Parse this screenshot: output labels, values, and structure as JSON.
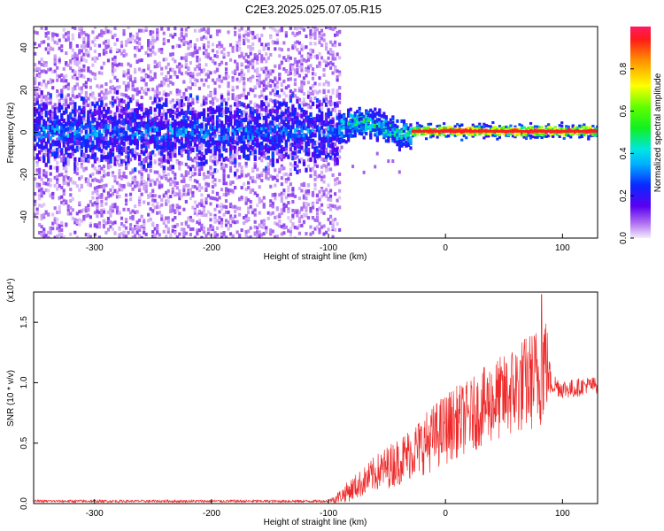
{
  "figure_title": "C2E3.2025.025.07.05.R15",
  "colors": {
    "line": "#ee2a2a",
    "background": "#ffffff",
    "axes": "#000000"
  },
  "chart_data": [
    {
      "type": "heatmap",
      "title": "",
      "xlabel": "Height of straight line (km)",
      "ylabel": "Frequency (Hz)",
      "xlim": [
        -352,
        130
      ],
      "ylim": [
        -50,
        50
      ],
      "xticks": [
        "-300",
        "-200",
        "-100",
        "0",
        "100"
      ],
      "yticks": [
        "-40",
        "-20",
        "0",
        "20",
        "40"
      ],
      "colorbar": {
        "label": "Normalized spectral amplitude",
        "range": [
          0.0,
          1.0
        ],
        "ticks": [
          "0.0",
          "0.2",
          "0.4",
          "0.6",
          "0.8"
        ],
        "colormap": "rainbow (violet-blue-cyan-green-yellow-red)"
      },
      "features": [
        {
          "x_range": [
            -352,
            -90
          ],
          "band_center_hz": 0,
          "core_halfwidth_hz": 10,
          "noise_halfwidth_hz": 50,
          "amplitude": 0.15
        },
        {
          "x_range": [
            -90,
            -30
          ],
          "band_center_hz": 3,
          "core_halfwidth_hz": 4,
          "amplitude": 0.45
        },
        {
          "x_range": [
            -30,
            130
          ],
          "band_center_hz": 0.5,
          "core_halfwidth_hz": 1.5,
          "amplitude": 0.95
        }
      ]
    },
    {
      "type": "line",
      "title": "",
      "xlabel": "Height of straight line (km)",
      "ylabel": "SNR (10 * v/v)",
      "y_multiplier": "(x10⁴)",
      "xlim": [
        -352,
        130
      ],
      "ylim": [
        0,
        1.75
      ],
      "xticks": [
        "-300",
        "-200",
        "-100",
        "0",
        "100"
      ],
      "yticks": [
        "0.0",
        "0.5",
        "1.0",
        "1.5"
      ],
      "series": [
        {
          "x": [
            -352,
            -200,
            -100,
            -92,
            -80,
            -70,
            -60,
            -50,
            -40,
            -30,
            -20,
            -10,
            0,
            10,
            20,
            30,
            40,
            50,
            60,
            70,
            80,
            85,
            90,
            100,
            110,
            120,
            130
          ],
          "mean": [
            0.02,
            0.02,
            0.02,
            0.05,
            0.12,
            0.18,
            0.25,
            0.3,
            0.35,
            0.42,
            0.48,
            0.55,
            0.62,
            0.68,
            0.72,
            0.78,
            0.85,
            0.88,
            0.95,
            1.0,
            1.05,
            1.2,
            1.0,
            0.95,
            0.95,
            0.98,
            0.98
          ],
          "spread": [
            0.01,
            0.01,
            0.01,
            0.05,
            0.1,
            0.12,
            0.15,
            0.18,
            0.2,
            0.22,
            0.25,
            0.28,
            0.3,
            0.3,
            0.3,
            0.32,
            0.35,
            0.35,
            0.4,
            0.4,
            0.45,
            0.5,
            0.1,
            0.08,
            0.08,
            0.07,
            0.07
          ],
          "peak": {
            "x": 82,
            "y": 1.73
          }
        }
      ]
    }
  ]
}
